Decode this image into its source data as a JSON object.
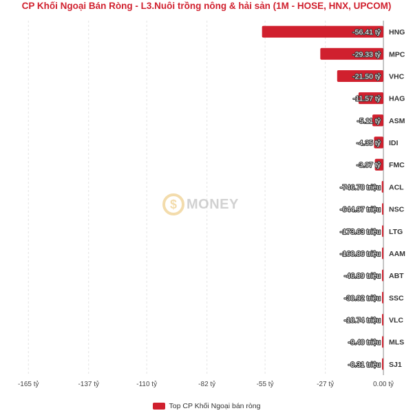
{
  "chart_data": {
    "type": "bar",
    "orientation": "horizontal",
    "title": "CP Khối Ngoại Bán Ròng - L3.Nuôi trồng nông & hải sản (1M - HOSE, HNX, UPCOM)",
    "categories": [
      "HNG",
      "MPC",
      "VHC",
      "HAG",
      "ASM",
      "IDI",
      "FMC",
      "ACL",
      "NSC",
      "LTG",
      "AAM",
      "ABT",
      "SSC",
      "VLC",
      "MLS",
      "SJ1"
    ],
    "values_bn_vnd": [
      -56.41,
      -29.33,
      -21.5,
      -11.57,
      -5.11,
      -4.35,
      -3.97,
      -0.74678,
      -0.64497,
      -0.17363,
      -0.16086,
      -0.04689,
      -0.03092,
      -0.01874,
      -0.0094,
      -0.00031
    ],
    "value_labels": [
      "-56.41 tỷ",
      "-29.33 tỷ",
      "-21.50 tỷ",
      "-11.57 tỷ",
      "-5.11 tỷ",
      "-4.35 tỷ",
      "-3.97 tỷ",
      "-746.78 triệu",
      "-644.97 triệu",
      "-173.63 triệu",
      "-160.86 triệu",
      "-46.89 triệu",
      "-30.92 triệu",
      "-18.74 triệu",
      "-9.40 triệu",
      "-0.31 triệu"
    ],
    "x_ticks": [
      -165,
      -137,
      -110,
      -82,
      -55,
      -27,
      0
    ],
    "x_tick_labels": [
      "-165 tỷ",
      "-137 tỷ",
      "-110 tỷ",
      "-82 tỷ",
      "-55 tỷ",
      "-27 tỷ",
      "0.00 tỷ"
    ],
    "xlim": [
      -167,
      0
    ],
    "grid": true,
    "legend": [
      "Top CP Khối Ngoại bán ròng"
    ],
    "legend_position": "bottom",
    "bar_color": "#d0202e"
  },
  "watermark": {
    "icon_glyph": "$",
    "text": "MONEY",
    "icon_name": "s-money-logo-icon"
  }
}
